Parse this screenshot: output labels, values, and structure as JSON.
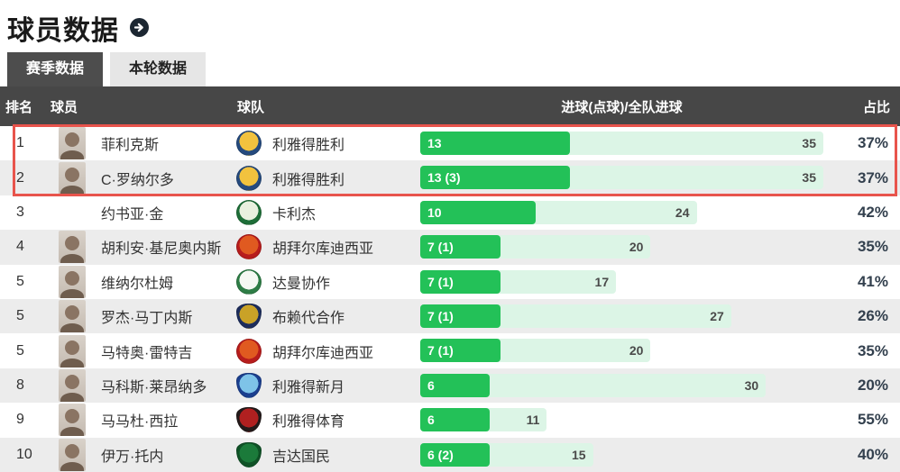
{
  "header": {
    "title": "球员数据",
    "arrow_icon": "circle-right-arrow-icon"
  },
  "tabs": [
    {
      "label": "赛季数据",
      "active": true
    },
    {
      "label": "本轮数据",
      "active": false
    }
  ],
  "table": {
    "columns": {
      "rank": "排名",
      "player": "球员",
      "team": "球队",
      "goals": "进球(点球)/全队进球",
      "ratio": "占比"
    },
    "bar_scale_max": 35,
    "rows": [
      {
        "rank": "1",
        "player": "菲利克斯",
        "team": "利雅得胜利",
        "bar_label": "13",
        "goals": 13,
        "team_goals": 35,
        "ratio": "37%",
        "highlighted": true,
        "has_photo": true,
        "logo": {
          "shape": "circle",
          "primary": "#f2c23e",
          "secondary": "#254a7e"
        }
      },
      {
        "rank": "2",
        "player": "C·罗纳尔多",
        "team": "利雅得胜利",
        "bar_label": "13 (3)",
        "goals": 13,
        "team_goals": 35,
        "ratio": "37%",
        "highlighted": true,
        "has_photo": true,
        "logo": {
          "shape": "circle",
          "primary": "#f2c23e",
          "secondary": "#254a7e"
        }
      },
      {
        "rank": "3",
        "player": "约书亚·金",
        "team": "卡利杰",
        "bar_label": "10",
        "goals": 10,
        "team_goals": 24,
        "ratio": "42%",
        "highlighted": false,
        "has_photo": false,
        "logo": {
          "shape": "circle",
          "primary": "#e9f0df",
          "secondary": "#1e6e38"
        }
      },
      {
        "rank": "4",
        "player": "胡利安·基尼奥内斯",
        "team": "胡拜尔库迪西亚",
        "bar_label": "7 (1)",
        "goals": 7,
        "team_goals": 20,
        "ratio": "35%",
        "highlighted": false,
        "has_photo": true,
        "logo": {
          "shape": "circle",
          "primary": "#e05a20",
          "secondary": "#b71c1c"
        }
      },
      {
        "rank": "5",
        "player": "维纳尔杜姆",
        "team": "达曼协作",
        "bar_label": "7 (1)",
        "goals": 7,
        "team_goals": 17,
        "ratio": "41%",
        "highlighted": false,
        "has_photo": true,
        "logo": {
          "shape": "circle",
          "primary": "#f5f8f2",
          "secondary": "#2e7d46"
        }
      },
      {
        "rank": "5",
        "player": "罗杰·马丁内斯",
        "team": "布赖代合作",
        "bar_label": "7 (1)",
        "goals": 7,
        "team_goals": 27,
        "ratio": "26%",
        "highlighted": false,
        "has_photo": true,
        "logo": {
          "shape": "shield",
          "primary": "#c9a227",
          "secondary": "#1d2d5c"
        }
      },
      {
        "rank": "5",
        "player": "马特奥·雷特吉",
        "team": "胡拜尔库迪西亚",
        "bar_label": "7 (1)",
        "goals": 7,
        "team_goals": 20,
        "ratio": "35%",
        "highlighted": false,
        "has_photo": true,
        "logo": {
          "shape": "circle",
          "primary": "#e05a20",
          "secondary": "#b71c1c"
        }
      },
      {
        "rank": "8",
        "player": "马科斯·莱昂纳多",
        "team": "利雅得新月",
        "bar_label": "6",
        "goals": 6,
        "team_goals": 30,
        "ratio": "20%",
        "highlighted": false,
        "has_photo": true,
        "logo": {
          "shape": "shield",
          "primary": "#7ec3e8",
          "secondary": "#1b3f8f"
        }
      },
      {
        "rank": "9",
        "player": "马马杜·西拉",
        "team": "利雅得体育",
        "bar_label": "6",
        "goals": 6,
        "team_goals": 11,
        "ratio": "55%",
        "highlighted": false,
        "has_photo": true,
        "logo": {
          "shape": "shield",
          "primary": "#b02020",
          "secondary": "#241a1a"
        }
      },
      {
        "rank": "10",
        "player": "伊万·托内",
        "team": "吉达国民",
        "bar_label": "6 (2)",
        "goals": 6,
        "team_goals": 15,
        "ratio": "40%",
        "highlighted": false,
        "has_photo": true,
        "logo": {
          "shape": "shield",
          "primary": "#1b7a3a",
          "secondary": "#0f5226"
        }
      }
    ]
  },
  "colors": {
    "header_bg": "#474747",
    "tab_active_bg": "#4d4d4d",
    "row_alt": "#ececec",
    "bar_green": "#23c158",
    "track_bg": "#dcf5e6",
    "highlight_border": "#e8544c",
    "percent_text": "#33404e"
  }
}
